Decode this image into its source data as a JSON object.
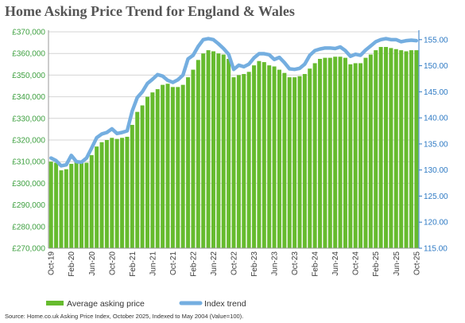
{
  "chart_data": {
    "type": "bar",
    "title": "Home Asking Price Trend for England & Wales",
    "source": "Source: Home.co.uk Asking Price Index, October 2025, Indexed to May 2004 (Value=100).",
    "x": [
      "Oct-19",
      "Nov-19",
      "Dec-19",
      "Jan-20",
      "Feb-20",
      "Mar-20",
      "Apr-20",
      "May-20",
      "Jun-20",
      "Jul-20",
      "Aug-20",
      "Sep-20",
      "Oct-20",
      "Nov-20",
      "Dec-20",
      "Jan-21",
      "Feb-21",
      "Mar-21",
      "Apr-21",
      "May-21",
      "Jun-21",
      "Jul-21",
      "Aug-21",
      "Sep-21",
      "Oct-21",
      "Nov-21",
      "Dec-21",
      "Jan-22",
      "Feb-22",
      "Mar-22",
      "Apr-22",
      "May-22",
      "Jun-22",
      "Jul-22",
      "Aug-22",
      "Sep-22",
      "Oct-22",
      "Nov-22",
      "Dec-22",
      "Jan-23",
      "Feb-23",
      "Mar-23",
      "Apr-23",
      "May-23",
      "Jun-23",
      "Jul-23",
      "Aug-23",
      "Sep-23",
      "Oct-23",
      "Nov-23",
      "Dec-23",
      "Jan-24",
      "Feb-24",
      "Mar-24",
      "Apr-24",
      "May-24",
      "Jun-24",
      "Jul-24",
      "Aug-24",
      "Sep-24",
      "Oct-24",
      "Nov-24",
      "Dec-24",
      "Jan-25",
      "Feb-25",
      "Mar-25",
      "Apr-25",
      "May-25",
      "Jun-25",
      "Jul-25",
      "Aug-25",
      "Sep-25",
      "Oct-25"
    ],
    "tick_labels": [
      "Oct-19",
      "Feb-20",
      "Jun-20",
      "Oct-20",
      "Feb-21",
      "Jun-21",
      "Oct-21",
      "Feb-22",
      "Jun-22",
      "Oct-22",
      "Feb-23",
      "Jun-23",
      "Oct-23",
      "Feb-24",
      "Jun-24",
      "Oct-24",
      "Feb-25",
      "Jun-25",
      "Oct-25"
    ],
    "series": [
      {
        "name": "Average asking price",
        "type": "bar",
        "axis": "left",
        "color": "#66bb2e",
        "values": [
          310000,
          309500,
          306000,
          306500,
          309000,
          310000,
          309500,
          309500,
          313000,
          317000,
          319000,
          320000,
          321000,
          320500,
          321000,
          321500,
          327000,
          333000,
          336000,
          340000,
          342000,
          343500,
          345500,
          346000,
          344500,
          344500,
          345500,
          349000,
          352500,
          357000,
          360000,
          361500,
          361000,
          360000,
          359500,
          357500,
          349000,
          350000,
          350500,
          351500,
          354500,
          356500,
          356000,
          354500,
          354000,
          352500,
          351000,
          349000,
          349000,
          349500,
          350500,
          353000,
          355500,
          357500,
          358000,
          358000,
          358500,
          358500,
          358000,
          355000,
          355500,
          355500,
          358000,
          359500,
          361500,
          363000,
          363000,
          362500,
          362000,
          361500,
          361000,
          361500,
          361500
        ]
      },
      {
        "name": "Index trend",
        "type": "line",
        "axis": "right",
        "color": "#74aee0",
        "values": [
          132.3,
          131.8,
          130.8,
          131.0,
          132.8,
          131.6,
          131.5,
          132.3,
          134.2,
          136.2,
          136.9,
          137.2,
          137.9,
          137.0,
          137.2,
          137.5,
          141.3,
          143.9,
          145.0,
          146.6,
          147.4,
          148.3,
          148.0,
          147.2,
          146.8,
          147.3,
          148.2,
          151.3,
          152.0,
          153.7,
          155.0,
          155.2,
          155.0,
          154.2,
          153.3,
          152.2,
          149.3,
          150.1,
          149.8,
          150.3,
          151.5,
          152.3,
          152.3,
          152.1,
          151.2,
          151.6,
          150.6,
          149.4,
          149.3,
          149.5,
          150.3,
          152.0,
          152.9,
          153.2,
          153.4,
          153.4,
          153.3,
          153.6,
          152.9,
          151.8,
          152.2,
          152.0,
          153.0,
          153.8,
          154.6,
          155.0,
          155.2,
          155.0,
          155.0,
          154.6,
          154.8,
          154.9,
          154.8
        ]
      }
    ],
    "y_left": {
      "lim": [
        270000,
        370000
      ],
      "step": 10000,
      "tick_labels": [
        "£270,000",
        "£280,000",
        "£290,000",
        "£300,000",
        "£310,000",
        "£320,000",
        "£330,000",
        "£340,000",
        "£350,000",
        "£360,000",
        "£370,000"
      ]
    },
    "y_right": {
      "lim": [
        115,
        156.5
      ],
      "ticks": [
        115,
        120,
        125,
        130,
        135,
        140,
        145,
        150,
        155
      ],
      "tick_labels": [
        "115.00",
        "120.00",
        "125.00",
        "130.00",
        "135.00",
        "140.00",
        "145.00",
        "150.00",
        "155.00"
      ]
    },
    "grid": "horizontal",
    "legend": {
      "placement": "bottom",
      "items": [
        "Average asking price",
        "Index trend"
      ]
    },
    "colors": {
      "bar": "#66bb2e",
      "line": "#74aee0",
      "left_axis_text": "#3ea040",
      "right_axis_text": "#2e7ac4",
      "grid": "#d4d4d4",
      "title": "#555555"
    }
  }
}
